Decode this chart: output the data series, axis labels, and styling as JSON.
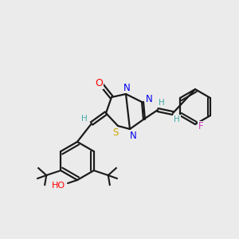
{
  "bg_color": "#ebebeb",
  "bond_color": "#1a1a1a",
  "atom_colors": {
    "O": "#ff0000",
    "N": "#0000ee",
    "S": "#ccaa00",
    "F": "#cc44bb",
    "H": "#44aaaa",
    "C": "#1a1a1a"
  }
}
